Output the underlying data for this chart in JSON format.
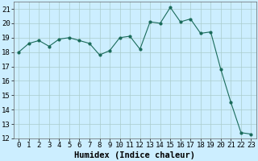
{
  "x": [
    0,
    1,
    2,
    3,
    4,
    5,
    6,
    7,
    8,
    9,
    10,
    11,
    12,
    13,
    14,
    15,
    16,
    17,
    18,
    19,
    20,
    21,
    22,
    23
  ],
  "y": [
    18.0,
    18.6,
    18.8,
    18.4,
    18.9,
    19.0,
    18.8,
    18.6,
    17.8,
    18.1,
    19.0,
    19.1,
    18.2,
    20.1,
    20.0,
    21.1,
    20.1,
    20.3,
    19.3,
    19.4,
    16.8,
    14.5,
    12.4,
    12.3
  ],
  "xlabel": "Humidex (Indice chaleur)",
  "xlim": [
    -0.5,
    23.5
  ],
  "ylim": [
    12,
    21.5
  ],
  "yticks": [
    12,
    13,
    14,
    15,
    16,
    17,
    18,
    19,
    20,
    21
  ],
  "xticks": [
    0,
    1,
    2,
    3,
    4,
    5,
    6,
    7,
    8,
    9,
    10,
    11,
    12,
    13,
    14,
    15,
    16,
    17,
    18,
    19,
    20,
    21,
    22,
    23
  ],
  "line_color": "#1a6b5a",
  "marker_color": "#1a6b5a",
  "bg_color": "#cceeff",
  "grid_color": "#aacccc",
  "label_fontsize": 7.5,
  "tick_fontsize": 6.5
}
